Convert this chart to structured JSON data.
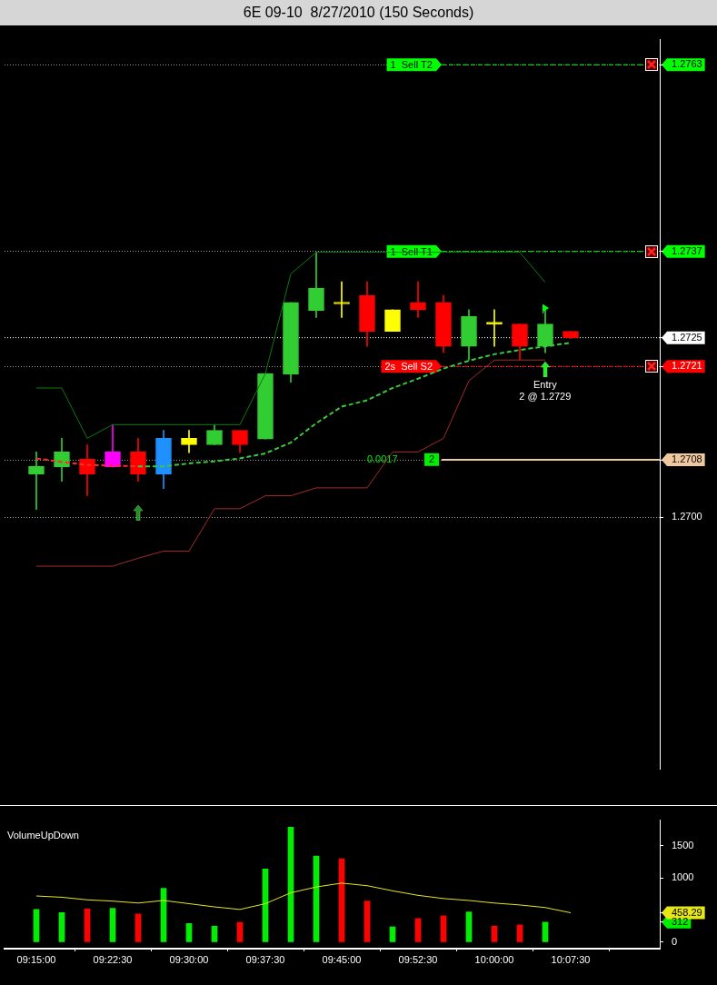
{
  "chart_data": [
    {
      "type": "candlestick",
      "title": "6E 09-10  8/27/2010 (150 Seconds)",
      "categories": [
        null,
        null,
        null,
        null,
        null,
        null,
        null,
        null,
        null,
        null,
        null,
        null,
        null,
        null,
        null,
        null,
        null,
        null,
        null,
        null,
        null,
        null
      ],
      "ohlc": [
        [
          1.2706,
          1.27091,
          1.27011,
          1.27071
        ],
        [
          1.2707,
          1.2711,
          1.2705,
          1.27091
        ],
        [
          1.27081,
          1.27101,
          1.2703,
          1.2706
        ],
        [
          1.2707,
          1.27129,
          1.2707,
          1.27091
        ],
        [
          1.27091,
          1.2711,
          1.2705,
          1.2706
        ],
        [
          1.2706,
          1.27121,
          1.2704,
          1.2711
        ],
        [
          1.27101,
          1.27121,
          1.2709,
          1.2711
        ],
        [
          1.27101,
          1.27129,
          1.27101,
          1.27121
        ],
        [
          1.27121,
          1.27121,
          1.2709,
          1.27101
        ],
        [
          1.27109,
          1.272,
          1.27109,
          1.272
        ],
        [
          1.27199,
          1.27299,
          1.27188,
          1.27299
        ],
        [
          1.27288,
          1.27369,
          1.27278,
          1.27319
        ],
        [
          1.27297,
          1.27328,
          1.27278,
          1.27297
        ],
        [
          1.27309,
          1.27328,
          1.27238,
          1.27259
        ],
        [
          1.27289,
          1.27289,
          1.27259,
          1.27259
        ],
        [
          1.27299,
          1.27328,
          1.27278,
          1.27289
        ],
        [
          1.27299,
          1.27309,
          1.27229,
          1.27238
        ],
        [
          1.27238,
          1.27289,
          1.27219,
          1.2728
        ],
        [
          1.27269,
          1.27289,
          1.27238,
          1.27269
        ],
        [
          1.27269,
          1.27269,
          1.27219,
          1.27238
        ],
        [
          1.27238,
          1.27289,
          1.27229,
          1.27269
        ],
        [
          1.27259,
          1.27259,
          1.27249,
          1.2725
        ]
      ],
      "colors": [
        "#32cd32",
        "#32cd32",
        "#ff0000",
        "#ff00ff",
        "#ff0000",
        "#1e90ff",
        "#ffff00",
        "#32cd32",
        "#ff0000",
        "#32cd32",
        "#32cd32",
        "#32cd32",
        "#ffff00",
        "#ff0000",
        "#ffff00",
        "#ff0000",
        "#ff0000",
        "#32cd32",
        "#ffff00",
        "#ff0000",
        "#32cd32",
        "#ff0000"
      ],
      "series": [
        {
          "type": "line",
          "color": "#0b7a0b",
          "values": [
            1.2718,
            1.2718,
            1.2711,
            1.27129,
            1.27129,
            1.27129,
            1.27129,
            1.27129,
            1.27129,
            1.272,
            1.27339,
            1.27369,
            1.27369,
            1.27369,
            1.27369,
            1.27369,
            1.27369,
            1.27369,
            1.27369,
            1.27369,
            1.27327,
            null
          ]
        },
        {
          "type": "line",
          "color": "#a52a2a",
          "values": [
            1.26932,
            1.26932,
            1.26932,
            1.26932,
            1.26943,
            1.26953,
            1.26953,
            1.27012,
            1.27012,
            1.2703,
            1.2703,
            1.27041,
            1.27041,
            1.27041,
            1.27091,
            1.27091,
            1.2711,
            1.2719,
            1.27219,
            1.27219,
            1.27219,
            null
          ]
        },
        {
          "type": "line",
          "color": "#ff2a2a",
          "line_style": "dashed",
          "values": [
            1.27082,
            1.27077,
            1.27073,
            1.27072,
            1.27071,
            null,
            null,
            null,
            null,
            null,
            null,
            null,
            null,
            null,
            null,
            null,
            null,
            null,
            null,
            null,
            null,
            null
          ]
        },
        {
          "type": "line",
          "color": "#3cc83c",
          "line_style": "dashed",
          "values": [
            null,
            null,
            null,
            null,
            1.27071,
            1.27071,
            1.27075,
            1.27078,
            1.27082,
            1.27089,
            1.27104,
            1.27131,
            1.27154,
            1.27163,
            1.2718,
            1.27193,
            1.27207,
            1.27218,
            1.27227,
            1.27233,
            1.27238,
            1.27243
          ]
        }
      ],
      "ylim": [
        1.2665,
        1.27665
      ],
      "yticks": [
        {
          "value": 1.27,
          "label": "1.2700"
        },
        {
          "value": 1.2708,
          "label": "1.2708"
        },
        {
          "value": 1.2721,
          "label": "1.2721"
        },
        {
          "value": 1.2725,
          "label": "1.2725"
        },
        {
          "value": 1.2737,
          "label": "1.2737"
        },
        {
          "value": 1.2763,
          "label": "1.2763"
        }
      ],
      "grid": "y",
      "tick_labels": "y",
      "ref_lines": [
        {
          "axis": "y",
          "value": 1.2763,
          "label": "1  Sell T2",
          "color": "#00ff00",
          "line_style": "dashed"
        },
        {
          "axis": "y",
          "value": 1.2737,
          "label": "1  Sell T1",
          "color": "#00ff00",
          "line_style": "dashed"
        },
        {
          "axis": "y",
          "value": 1.2725,
          "color": "#ffffff",
          "line_style": "dotted"
        },
        {
          "axis": "y",
          "value": 1.2721,
          "label": "2s  Sell S2",
          "color": "#ff0000",
          "line_style": "dashed"
        },
        {
          "axis": "y",
          "value": 1.2708,
          "color": "#f0c8a0",
          "line_style": "solid"
        }
      ],
      "annotations": [
        "0.0017",
        "2",
        "Entry\n2 @ 1.2729"
      ]
    },
    {
      "type": "bar",
      "title": "VolumeUpDown",
      "categories": [
        "09:15:00",
        null,
        null,
        "09:22:30",
        null,
        null,
        "09:30:00",
        null,
        null,
        "09:37:30",
        null,
        null,
        "09:45:00",
        null,
        null,
        "09:52:30",
        null,
        null,
        "10:00:00",
        null,
        null,
        "10:07:30"
      ],
      "series": [
        {
          "colors": [
            "#00ee00",
            "#00ee00",
            "#ff0000",
            "#00ee00",
            "#ff0000",
            "#00ee00",
            "#00ee00",
            "#00ee00",
            "#ff0000",
            "#00ee00",
            "#00ee00",
            "#00ee00",
            "#ff0000",
            "#ff0000",
            "#00ee00",
            "#ff0000",
            "#ff0000",
            "#00ee00",
            "#ff0000",
            "#ff0000",
            "#00ee00",
            "#00ee00"
          ],
          "values": [
            510,
            460,
            520,
            530,
            440,
            840,
            290,
            250,
            310,
            1140,
            1790,
            1340,
            1300,
            640,
            240,
            370,
            410,
            470,
            250,
            270,
            312,
            null
          ]
        },
        {
          "type": "line",
          "color": "#e6e619",
          "values": [
            720,
            700,
            660,
            640,
            610,
            650,
            600,
            550,
            510,
            600,
            770,
            860,
            920,
            880,
            800,
            730,
            680,
            650,
            610,
            580,
            540,
            458.29
          ]
        }
      ],
      "ylim": [
        -100,
        1900
      ],
      "yticks": [
        0,
        1000,
        1500,
        {
          "value": 312,
          "label": "312"
        },
        {
          "value": 458.29,
          "label": "458.29"
        }
      ]
    }
  ]
}
